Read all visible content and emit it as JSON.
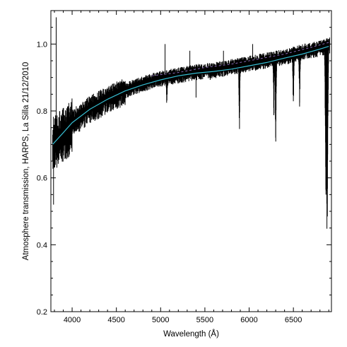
{
  "chart_data": {
    "type": "line",
    "title": "",
    "xlabel": "Wavelength (Å)",
    "ylabel": "Atmosphere transmission, HARPS, La Silla 21/12/2010",
    "xlim": [
      3760,
      6930
    ],
    "ylim": [
      0.2,
      1.1
    ],
    "xticks": [
      4000,
      4500,
      5000,
      5500,
      6000,
      6500
    ],
    "yticks": [
      0.2,
      0.4,
      0.6,
      0.8,
      1.0
    ],
    "ytick_labels": [
      "0.2",
      "0.4",
      "0.6",
      "0.8",
      "1.0"
    ],
    "grid": false,
    "series": [
      {
        "role": "observed",
        "color": "#000000",
        "x": [
          3780,
          3900,
          4000,
          4200,
          4400,
          4600,
          4800,
          5000,
          5200,
          5400,
          5600,
          5800,
          6000,
          6200,
          6400,
          6600,
          6800,
          6900
        ],
        "y": [
          0.71,
          0.74,
          0.77,
          0.81,
          0.84,
          0.865,
          0.885,
          0.9,
          0.91,
          0.92,
          0.925,
          0.935,
          0.945,
          0.955,
          0.965,
          0.98,
          0.99,
          1.0
        ],
        "absorption_bands": [
          {
            "x": 5890,
            "y": 0.71
          },
          {
            "x": 6280,
            "y": 0.77
          },
          {
            "x": 6300,
            "y": 0.67
          },
          {
            "x": 6500,
            "y": 0.78
          },
          {
            "x": 6570,
            "y": 0.79
          },
          {
            "x": 6870,
            "y": 0.38
          },
          {
            "x": 6880,
            "y": 0.33
          },
          {
            "x": 5070,
            "y": 0.8
          },
          {
            "x": 5740,
            "y": 0.9
          },
          {
            "x": 5560,
            "y": 0.885
          }
        ],
        "spikes": [
          {
            "x": 3820,
            "y": 1.08
          },
          {
            "x": 3790,
            "y": 0.52
          },
          {
            "x": 5050,
            "y": 1.0
          },
          {
            "x": 5330,
            "y": 0.98
          },
          {
            "x": 5400,
            "y": 0.84
          },
          {
            "x": 5710,
            "y": 0.98
          },
          {
            "x": 6040,
            "y": 1.0
          }
        ]
      },
      {
        "role": "model",
        "color": "#36bcd0",
        "x": [
          3780,
          3900,
          4000,
          4200,
          4400,
          4600,
          4800,
          5000,
          5200,
          5400,
          5600,
          5800,
          6000,
          6200,
          6400,
          6600,
          6800,
          6900
        ],
        "y": [
          0.7,
          0.735,
          0.765,
          0.805,
          0.835,
          0.86,
          0.878,
          0.893,
          0.905,
          0.913,
          0.918,
          0.925,
          0.935,
          0.945,
          0.958,
          0.97,
          0.985,
          0.993
        ]
      },
      {
        "role": "model-dashed",
        "color": "#8a6ab8",
        "x": [
          4900,
          5200,
          5500,
          5800,
          6100,
          6400,
          6700,
          6900
        ],
        "y": [
          0.905,
          0.915,
          0.93,
          0.94,
          0.955,
          0.97,
          0.99,
          1.005
        ]
      }
    ]
  }
}
